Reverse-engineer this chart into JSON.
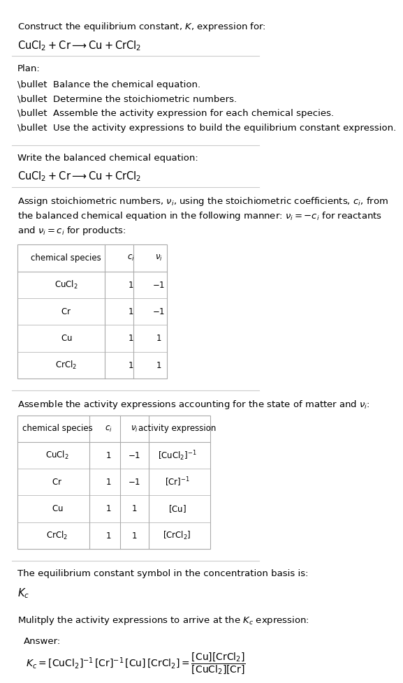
{
  "title_line1": "Construct the equilibrium constant, $K$, expression for:",
  "title_line2": "$\\mathrm{CuCl_2 + Cr \\longrightarrow Cu + CrCl_2}$",
  "plan_header": "Plan:",
  "plan_items": [
    "\\bullet  Balance the chemical equation.",
    "\\bullet  Determine the stoichiometric numbers.",
    "\\bullet  Assemble the activity expression for each chemical species.",
    "\\bullet  Use the activity expressions to build the equilibrium constant expression."
  ],
  "section2_header": "Write the balanced chemical equation:",
  "section2_eq": "$\\mathrm{CuCl_2 + Cr \\longrightarrow Cu + CrCl_2}$",
  "section3_header": "Assign stoichiometric numbers, $\\nu_i$, using the stoichiometric coefficients, $c_i$, from\nthe balanced chemical equation in the following manner: $\\nu_i = -c_i$ for reactants\nand $\\nu_i = c_i$ for products:",
  "table1_headers": [
    "chemical species",
    "$c_i$",
    "$\\nu_i$"
  ],
  "table1_rows": [
    [
      "$\\mathrm{CuCl_2}$",
      "1",
      "$-1$"
    ],
    [
      "$\\mathrm{Cr}$",
      "1",
      "$-1$"
    ],
    [
      "$\\mathrm{Cu}$",
      "1",
      "$1$"
    ],
    [
      "$\\mathrm{CrCl_2}$",
      "1",
      "$1$"
    ]
  ],
  "section4_header": "Assemble the activity expressions accounting for the state of matter and $\\nu_i$:",
  "table2_headers": [
    "chemical species",
    "$c_i$",
    "$\\nu_i$",
    "activity expression"
  ],
  "table2_rows": [
    [
      "$\\mathrm{CuCl_2}$",
      "1",
      "$-1$",
      "$[\\mathrm{CuCl_2}]^{-1}$"
    ],
    [
      "$\\mathrm{Cr}$",
      "1",
      "$-1$",
      "$[\\mathrm{Cr}]^{-1}$"
    ],
    [
      "$\\mathrm{Cu}$",
      "1",
      "$1$",
      "$[\\mathrm{Cu}]$"
    ],
    [
      "$\\mathrm{CrCl_2}$",
      "1",
      "$1$",
      "$[\\mathrm{CrCl_2}]$"
    ]
  ],
  "section5_line1": "The equilibrium constant symbol in the concentration basis is:",
  "section5_line2": "$K_c$",
  "section6_header": "Mulitply the activity expressions to arrive at the $K_c$ expression:",
  "answer_label": "Answer:",
  "answer_eq_line1": "$K_c = [\\mathrm{CuCl_2}]^{-1}\\,[\\mathrm{Cr}]^{-1}\\,[\\mathrm{Cu}]\\,[\\mathrm{CrCl_2}] = \\dfrac{[\\mathrm{Cu}][\\mathrm{CrCl_2}]}{[\\mathrm{CuCl_2}][\\mathrm{Cr}]}$",
  "bg_color": "#ffffff",
  "text_color": "#000000",
  "table_border_color": "#aaaaaa",
  "answer_box_color": "#e8f4f8",
  "answer_box_border": "#7ab8d4",
  "separator_color": "#cccccc",
  "font_size": 9.5,
  "fig_width": 5.24,
  "fig_height": 9.49
}
